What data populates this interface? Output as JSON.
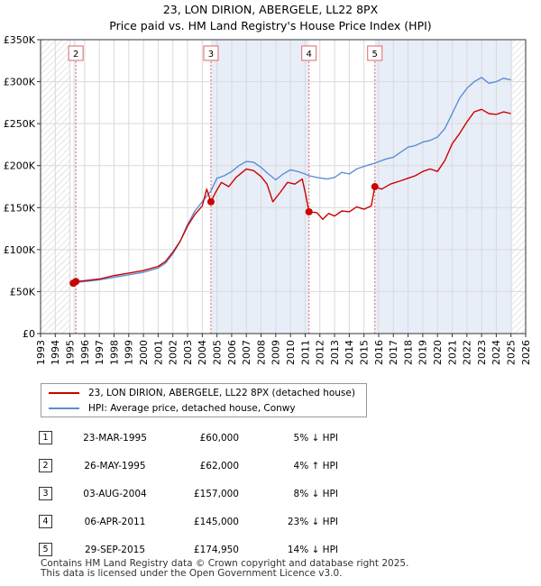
{
  "header": {
    "title_line1": "23, LON DIRION, ABERGELE, LL22 8PX",
    "title_line2": "Price paid vs. HM Land Registry's House Price Index (HPI)"
  },
  "colors": {
    "property": "#cc0000",
    "hpi": "#5b8fd4",
    "shade": "#e8eef8",
    "marker_line": "#e06666",
    "axis": "#333333"
  },
  "chart_data": {
    "type": "line",
    "x_range": [
      1993.0,
      2026.0
    ],
    "ylim": [
      0,
      350000
    ],
    "y_ticks": [
      0,
      50000,
      100000,
      150000,
      200000,
      250000,
      300000,
      350000
    ],
    "y_tick_labels": [
      "£0",
      "£50K",
      "£100K",
      "£150K",
      "£200K",
      "£250K",
      "£300K",
      "£350K"
    ],
    "x_ticks": [
      1993,
      1994,
      1995,
      1996,
      1997,
      1998,
      1999,
      2000,
      2001,
      2002,
      2003,
      2004,
      2005,
      2006,
      2007,
      2008,
      2009,
      2010,
      2011,
      2012,
      2013,
      2014,
      2015,
      2016,
      2017,
      2018,
      2019,
      2020,
      2021,
      2022,
      2023,
      2024,
      2025,
      2026
    ],
    "x_tick_labels": [
      "1993",
      "1994",
      "1995",
      "1996",
      "1997",
      "1998",
      "1999",
      "2000",
      "2001",
      "2002",
      "2003",
      "2004",
      "2005",
      "2006",
      "2007",
      "2008",
      "2009",
      "2010",
      "2011",
      "2012",
      "2013",
      "2014",
      "2015",
      "2016",
      "2017",
      "2018",
      "2019",
      "2020",
      "2021",
      "2022",
      "2023",
      "2024",
      "2025",
      "2026"
    ],
    "shaded_ranges": [
      [
        1995.22,
        1995.4
      ],
      [
        2004.59,
        2011.26
      ],
      [
        2015.74,
        2025.1
      ]
    ],
    "hatched_ranges": [
      [
        1993.0,
        1995.0
      ],
      [
        2025.1,
        2026.0
      ]
    ],
    "series": [
      {
        "name": "23, LON DIRION, ABERGELE, LL22 8PX (detached house)",
        "points": [
          [
            1995.22,
            60000
          ],
          [
            1995.4,
            62000
          ],
          [
            1996.0,
            63000
          ],
          [
            1997.0,
            65000
          ],
          [
            1998.0,
            69000
          ],
          [
            1999.0,
            72000
          ],
          [
            2000.0,
            75000
          ],
          [
            2001.0,
            80000
          ],
          [
            2001.5,
            86000
          ],
          [
            2002.0,
            97000
          ],
          [
            2002.5,
            110000
          ],
          [
            2003.0,
            128000
          ],
          [
            2003.5,
            142000
          ],
          [
            2004.0,
            152000
          ],
          [
            2004.3,
            172000
          ],
          [
            2004.59,
            157000
          ],
          [
            2004.9,
            168000
          ],
          [
            2005.3,
            180000
          ],
          [
            2005.8,
            175000
          ],
          [
            2006.3,
            186000
          ],
          [
            2007.0,
            196000
          ],
          [
            2007.5,
            194000
          ],
          [
            2008.0,
            187000
          ],
          [
            2008.4,
            178000
          ],
          [
            2008.8,
            157000
          ],
          [
            2009.3,
            168000
          ],
          [
            2009.8,
            180000
          ],
          [
            2010.3,
            178000
          ],
          [
            2010.8,
            184000
          ],
          [
            2011.0,
            168000
          ],
          [
            2011.26,
            145000
          ],
          [
            2011.8,
            144000
          ],
          [
            2012.2,
            136000
          ],
          [
            2012.6,
            143000
          ],
          [
            2013.0,
            140000
          ],
          [
            2013.5,
            146000
          ],
          [
            2014.0,
            145000
          ],
          [
            2014.5,
            151000
          ],
          [
            2015.0,
            148000
          ],
          [
            2015.5,
            152000
          ],
          [
            2015.74,
            174950
          ],
          [
            2016.2,
            172000
          ],
          [
            2016.8,
            178000
          ],
          [
            2017.5,
            182000
          ],
          [
            2018.0,
            185000
          ],
          [
            2018.5,
            188000
          ],
          [
            2019.0,
            193000
          ],
          [
            2019.5,
            196000
          ],
          [
            2020.0,
            193000
          ],
          [
            2020.5,
            206000
          ],
          [
            2021.0,
            226000
          ],
          [
            2021.5,
            238000
          ],
          [
            2022.0,
            252000
          ],
          [
            2022.5,
            264000
          ],
          [
            2023.0,
            267000
          ],
          [
            2023.5,
            262000
          ],
          [
            2024.0,
            261000
          ],
          [
            2024.5,
            264000
          ],
          [
            2025.0,
            262000
          ]
        ]
      },
      {
        "name": "HPI: Average price, detached house, Conwy",
        "points": [
          [
            1995.0,
            61000
          ],
          [
            1995.5,
            61000
          ],
          [
            1996.0,
            62000
          ],
          [
            1997.0,
            64000
          ],
          [
            1998.0,
            67000
          ],
          [
            1999.0,
            70000
          ],
          [
            2000.0,
            73000
          ],
          [
            2001.0,
            78000
          ],
          [
            2001.5,
            84000
          ],
          [
            2002.0,
            95000
          ],
          [
            2002.5,
            110000
          ],
          [
            2003.0,
            130000
          ],
          [
            2003.5,
            146000
          ],
          [
            2004.0,
            157000
          ],
          [
            2004.59,
            170000
          ],
          [
            2005.0,
            185000
          ],
          [
            2005.5,
            188000
          ],
          [
            2006.0,
            193000
          ],
          [
            2006.5,
            200000
          ],
          [
            2007.0,
            205000
          ],
          [
            2007.5,
            204000
          ],
          [
            2008.0,
            198000
          ],
          [
            2008.5,
            190000
          ],
          [
            2009.0,
            183000
          ],
          [
            2009.5,
            190000
          ],
          [
            2010.0,
            195000
          ],
          [
            2010.5,
            193000
          ],
          [
            2011.0,
            190000
          ],
          [
            2011.26,
            188000
          ],
          [
            2011.8,
            186000
          ],
          [
            2012.5,
            184000
          ],
          [
            2013.0,
            186000
          ],
          [
            2013.5,
            192000
          ],
          [
            2014.0,
            190000
          ],
          [
            2014.5,
            196000
          ],
          [
            2015.0,
            199000
          ],
          [
            2015.74,
            203000
          ],
          [
            2016.5,
            208000
          ],
          [
            2017.0,
            210000
          ],
          [
            2017.5,
            216000
          ],
          [
            2018.0,
            222000
          ],
          [
            2018.5,
            224000
          ],
          [
            2019.0,
            228000
          ],
          [
            2019.5,
            230000
          ],
          [
            2020.0,
            234000
          ],
          [
            2020.5,
            244000
          ],
          [
            2021.0,
            262000
          ],
          [
            2021.5,
            280000
          ],
          [
            2022.0,
            292000
          ],
          [
            2022.5,
            300000
          ],
          [
            2023.0,
            305000
          ],
          [
            2023.5,
            298000
          ],
          [
            2024.0,
            300000
          ],
          [
            2024.5,
            304000
          ],
          [
            2025.0,
            302000
          ]
        ]
      }
    ],
    "markers": [
      {
        "label": "2",
        "x": 1995.4,
        "y": 62000
      },
      {
        "label": "3",
        "x": 2004.59,
        "y": 157000
      },
      {
        "label": "4",
        "x": 2011.26,
        "y": 145000
      },
      {
        "label": "5",
        "x": 2015.74,
        "y": 174950
      }
    ],
    "sale_points": [
      {
        "x": 1995.22,
        "y": 60000
      },
      {
        "x": 1995.4,
        "y": 62000
      },
      {
        "x": 2004.59,
        "y": 157000
      },
      {
        "x": 2011.26,
        "y": 145000
      },
      {
        "x": 2015.74,
        "y": 174950
      }
    ]
  },
  "legend": {
    "property_label": "23, LON DIRION, ABERGELE, LL22 8PX (detached house)",
    "hpi_label": "HPI: Average price, detached house, Conwy"
  },
  "transactions": [
    {
      "num": "1",
      "date": "23-MAR-1995",
      "price": "£60,000",
      "hpi": "5% ↓ HPI"
    },
    {
      "num": "2",
      "date": "26-MAY-1995",
      "price": "£62,000",
      "hpi": "4% ↑ HPI"
    },
    {
      "num": "3",
      "date": "03-AUG-2004",
      "price": "£157,000",
      "hpi": "8% ↓ HPI"
    },
    {
      "num": "4",
      "date": "06-APR-2011",
      "price": "£145,000",
      "hpi": "23% ↓ HPI"
    },
    {
      "num": "5",
      "date": "29-SEP-2015",
      "price": "£174,950",
      "hpi": "14% ↓ HPI"
    }
  ],
  "footer": {
    "line1": "Contains HM Land Registry data © Crown copyright and database right 2025.",
    "line2": "This data is licensed under the Open Government Licence v3.0."
  }
}
